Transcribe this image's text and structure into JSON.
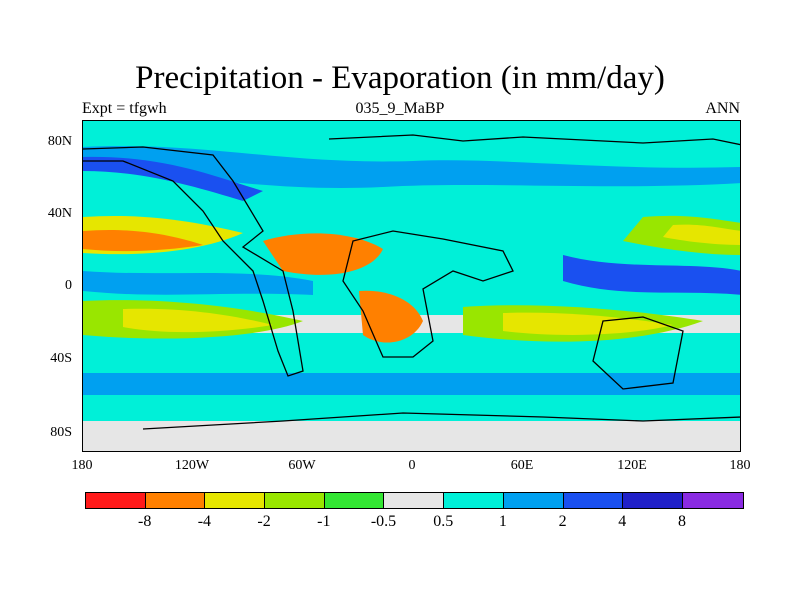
{
  "title": "Precipitation - Evaporation (in mm/day)",
  "subtitle_left": "Expt = tfgwh",
  "subtitle_center": "035_9_MaBP",
  "subtitle_right": "ANN",
  "y_axis_labels": [
    "80N",
    "40N",
    "0",
    "40S",
    "80S"
  ],
  "x_axis_labels": [
    "180",
    "120W",
    "60W",
    "0",
    "60E",
    "120E",
    "180"
  ],
  "colorbar": {
    "colors": [
      "#ff1a1a",
      "#ff8000",
      "#e6e600",
      "#99e600",
      "#33e633",
      "#e6e6e6",
      "#00f0d8",
      "#00a0f0",
      "#1a50f0",
      "#2020c8",
      "#8a2be2"
    ],
    "labels": [
      "-8",
      "-4",
      "-2",
      "-1",
      "-0.5",
      "0.5",
      "1",
      "2",
      "4",
      "8"
    ]
  },
  "legend_colors": {
    "ocean_base": "#00f0d8"
  }
}
